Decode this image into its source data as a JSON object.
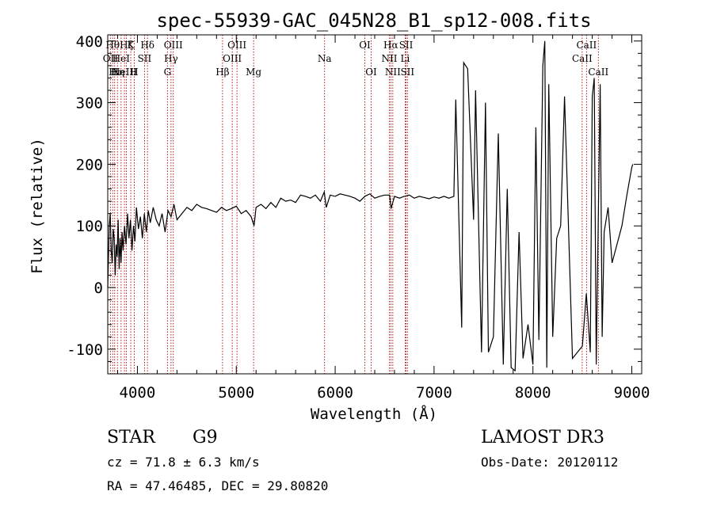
{
  "chart_data": {
    "type": "line",
    "title": "spec-55939-GAC_045N28_B1_sp12-008.fits",
    "xlabel": "Wavelength (Å)",
    "ylabel": "Flux (relative)",
    "xlim": [
      3700,
      9100
    ],
    "ylim": [
      -140,
      410
    ],
    "xticks": [
      4000,
      5000,
      6000,
      7000,
      8000,
      9000
    ],
    "yticks": [
      -100,
      0,
      100,
      200,
      300,
      400
    ],
    "series": [
      {
        "name": "flux",
        "x": [
          3700,
          3715,
          3725,
          3735,
          3745,
          3755,
          3765,
          3775,
          3785,
          3795,
          3805,
          3815,
          3825,
          3835,
          3845,
          3855,
          3870,
          3885,
          3900,
          3915,
          3930,
          3945,
          3960,
          3975,
          3990,
          4010,
          4030,
          4050,
          4070,
          4090,
          4110,
          4130,
          4160,
          4190,
          4220,
          4250,
          4280,
          4310,
          4340,
          4370,
          4400,
          4450,
          4500,
          4550,
          4600,
          4650,
          4700,
          4750,
          4800,
          4850,
          4900,
          4950,
          5000,
          5050,
          5100,
          5150,
          5180,
          5200,
          5250,
          5300,
          5350,
          5400,
          5450,
          5500,
          5550,
          5600,
          5650,
          5700,
          5750,
          5800,
          5850,
          5890,
          5910,
          5950,
          6000,
          6050,
          6100,
          6150,
          6200,
          6250,
          6300,
          6350,
          6400,
          6450,
          6500,
          6550,
          6565,
          6600,
          6650,
          6700,
          6750,
          6800,
          6850,
          6900,
          6950,
          7000,
          7050,
          7100,
          7150,
          7200,
          7220,
          7280,
          7300,
          7340,
          7400,
          7420,
          7480,
          7520,
          7550,
          7600,
          7650,
          7700,
          7740,
          7780,
          7820,
          7860,
          7900,
          7950,
          8000,
          8030,
          8060,
          8100,
          8120,
          8140,
          8160,
          8200,
          8240,
          8280,
          8320,
          8400,
          8450,
          8500,
          8540,
          8580,
          8600,
          8620,
          8640,
          8660,
          8680,
          8700,
          8720,
          8760,
          8800,
          8850,
          8900,
          8950,
          9000,
          9010
        ],
        "y": [
          0,
          100,
          120,
          60,
          40,
          95,
          80,
          20,
          70,
          50,
          110,
          30,
          80,
          40,
          90,
          60,
          100,
          70,
          120,
          80,
          110,
          60,
          100,
          75,
          130,
          95,
          115,
          80,
          120,
          90,
          125,
          105,
          130,
          110,
          100,
          120,
          90,
          125,
          115,
          135,
          110,
          120,
          130,
          125,
          135,
          130,
          128,
          125,
          122,
          130,
          125,
          128,
          132,
          120,
          125,
          115,
          100,
          130,
          135,
          128,
          138,
          130,
          145,
          140,
          142,
          138,
          150,
          148,
          145,
          150,
          140,
          155,
          130,
          150,
          148,
          152,
          150,
          148,
          145,
          140,
          148,
          152,
          145,
          148,
          150,
          150,
          128,
          148,
          145,
          148,
          150,
          145,
          148,
          146,
          144,
          147,
          145,
          148,
          145,
          148,
          305,
          -65,
          365,
          355,
          110,
          320,
          -105,
          300,
          -105,
          -80,
          250,
          -125,
          160,
          -130,
          -135,
          90,
          -115,
          -60,
          -125,
          260,
          -85,
          360,
          400,
          -130,
          330,
          -80,
          80,
          100,
          310,
          -115,
          -105,
          -95,
          -10,
          -105,
          310,
          340,
          -125,
          100,
          330,
          -80,
          90,
          130,
          40,
          70,
          100,
          150,
          195,
          200
        ]
      }
    ],
    "lines": [
      {
        "wavelength": 3727,
        "label": "OII",
        "row": 2
      },
      {
        "wavelength": 3750,
        "label": "Hθ",
        "row": 1
      },
      {
        "wavelength": 3770,
        "label": "Hι",
        "row": 3
      },
      {
        "wavelength": 3798,
        "label": "Hη",
        "row": 3
      },
      {
        "wavelength": 3835,
        "label": "HeI",
        "row": 2
      },
      {
        "wavelength": 3869,
        "label": "NeIII",
        "row": 3
      },
      {
        "wavelength": 3889,
        "label": "Hζ",
        "row": 1
      },
      {
        "wavelength": 3933,
        "label": "K",
        "row": 1
      },
      {
        "wavelength": 3968,
        "label": "H",
        "row": 3
      },
      {
        "wavelength": 4072,
        "label": "SII",
        "row": 2
      },
      {
        "wavelength": 4102,
        "label": "Hδ",
        "row": 1
      },
      {
        "wavelength": 4304,
        "label": "G",
        "row": 3
      },
      {
        "wavelength": 4340,
        "label": "Hγ",
        "row": 2
      },
      {
        "wavelength": 4363,
        "label": "OIII",
        "row": 1
      },
      {
        "wavelength": 4861,
        "label": "Hβ",
        "row": 3
      },
      {
        "wavelength": 4959,
        "label": "OIII",
        "row": 2
      },
      {
        "wavelength": 5007,
        "label": "OIII",
        "row": 1
      },
      {
        "wavelength": 5175,
        "label": "Mg",
        "row": 3
      },
      {
        "wavelength": 5893,
        "label": "Na",
        "row": 2
      },
      {
        "wavelength": 6300,
        "label": "OI",
        "row": 1
      },
      {
        "wavelength": 6364,
        "label": "OI",
        "row": 3
      },
      {
        "wavelength": 6548,
        "label": "NII",
        "row": 2
      },
      {
        "wavelength": 6563,
        "label": "Hα",
        "row": 1
      },
      {
        "wavelength": 6583,
        "label": "NII",
        "row": 3
      },
      {
        "wavelength": 6708,
        "label": "Li",
        "row": 2
      },
      {
        "wavelength": 6717,
        "label": "SII",
        "row": 1
      },
      {
        "wavelength": 6731,
        "label": "SII",
        "row": 3
      },
      {
        "wavelength": 8498,
        "label": "CaII",
        "row": 2
      },
      {
        "wavelength": 8542,
        "label": "CaII",
        "row": 1
      },
      {
        "wavelength": 8662,
        "label": "CaII",
        "row": 3
      }
    ],
    "line_color": "#b00000",
    "data_color": "#000000"
  },
  "info": {
    "class": "STAR",
    "subclass": "G9",
    "redshift": "cz = 71.8 ± 6.3 km/s",
    "coords": "RA =  47.46485, DEC =  29.80820",
    "survey": "LAMOST DR3",
    "obs_date": "Obs-Date: 20120112"
  }
}
